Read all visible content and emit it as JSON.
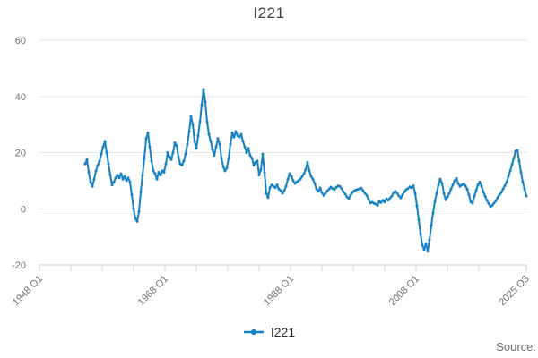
{
  "title": "I221",
  "legend": {
    "items": [
      {
        "label": "I221",
        "color": "#1380c4"
      }
    ]
  },
  "footer": {
    "source_label": "Source:"
  },
  "colors": {
    "series_blue": "#1380c4",
    "grid_line": "#e6e6e6",
    "axis_line": "#c9d0de",
    "text_muted": "#6f6f6f",
    "text_dark": "#3c3c3c"
  },
  "chart_data": {
    "type": "line",
    "title": "I221",
    "xlabel": "",
    "ylabel": "",
    "grid": "horizontal-only",
    "legend_position": "bottom",
    "y_axis": {
      "ticks": [
        -20,
        0,
        20,
        40,
        60
      ],
      "range": [
        -20,
        60
      ]
    },
    "x_axis": {
      "range_years": [
        1948,
        2025.75
      ],
      "minor_tick_interval_years": 5,
      "minor_tick_last_year": 2018,
      "labeled_ticks": [
        {
          "year": 1948.0,
          "label": "1948 Q1"
        },
        {
          "year": 1968.0,
          "label": "1968 Q1"
        },
        {
          "year": 1988.0,
          "label": "1988 Q1"
        },
        {
          "year": 2008.0,
          "label": "2008 Q1"
        },
        {
          "year": 2025.5,
          "label": "2025 Q3"
        }
      ]
    },
    "series": [
      {
        "name": "I221",
        "color": "#1380c4",
        "marker": "circle",
        "x_start_year": 1955.2857,
        "x_step_years": 0.2857143,
        "values": [
          16,
          17.5,
          13,
          9.5,
          8,
          10.5,
          13.5,
          15.5,
          17,
          19.5,
          22,
          24,
          20,
          16,
          12,
          8.5,
          9.5,
          11,
          12,
          11,
          12.5,
          10.5,
          11.5,
          10,
          11,
          9.5,
          5,
          0,
          -3.5,
          -4.5,
          -1,
          6,
          12,
          18,
          25,
          27,
          22,
          17,
          13.5,
          12.5,
          10.5,
          13,
          12,
          13.5,
          13,
          16,
          20,
          18.5,
          17.5,
          20,
          23.5,
          22.5,
          18.5,
          16,
          15.5,
          17,
          19.5,
          23,
          27.5,
          33,
          30,
          24,
          21.5,
          26,
          31,
          37,
          42.5,
          38,
          31,
          26.5,
          24,
          21,
          19,
          22,
          25,
          23,
          18,
          15,
          13.5,
          14.5,
          18,
          23,
          27,
          25.5,
          27.5,
          26,
          25.5,
          26.5,
          24,
          22,
          20,
          21.5,
          19,
          18,
          15.5,
          16.5,
          17,
          12,
          14,
          19.5,
          13,
          5.5,
          4,
          7.5,
          8.5,
          8,
          7.5,
          8.5,
          7,
          6.5,
          5.5,
          6.5,
          8,
          10.5,
          12.5,
          11.5,
          10,
          9,
          9.5,
          10,
          10.5,
          11.5,
          12.5,
          14,
          16.5,
          13.5,
          11.5,
          10.5,
          9,
          7,
          6.2,
          7.4,
          5.8,
          4.8,
          5.5,
          6.4,
          7,
          7.7,
          7.2,
          6.9,
          7.6,
          8.1,
          8,
          7.2,
          6,
          5.2,
          4.2,
          3.7,
          4.8,
          5.8,
          6.4,
          6.7,
          6.9,
          7.1,
          7.3,
          6.4,
          5.6,
          4.8,
          3.3,
          2.1,
          2.3,
          1.9,
          1.7,
          1.2,
          2.6,
          2.2,
          3,
          2.4,
          3.5,
          3,
          3.8,
          4.5,
          5.8,
          6.2,
          5.5,
          4.5,
          3.8,
          5,
          6,
          6.8,
          7.2,
          7.8,
          7.5,
          8.2,
          5.5,
          1,
          -4,
          -9,
          -13,
          -14.5,
          -12.5,
          -15.2,
          -11,
          -6,
          -1.5,
          2.5,
          5.5,
          8.5,
          10.5,
          9,
          5.5,
          3.2,
          4.2,
          5.5,
          7,
          8.5,
          10,
          10.8,
          9,
          8,
          8.5,
          8.8,
          8.2,
          7,
          5,
          2.5,
          2,
          4.5,
          6.5,
          8.5,
          9.5,
          8,
          6,
          4.5,
          3,
          1.8,
          0.8,
          1.2,
          2,
          2.8,
          4,
          5,
          5.8,
          7,
          8.2,
          9.5,
          11.5,
          13.5,
          15.8,
          18,
          20.5,
          20.8,
          17,
          13,
          9.5,
          7,
          4.5
        ]
      }
    ]
  }
}
